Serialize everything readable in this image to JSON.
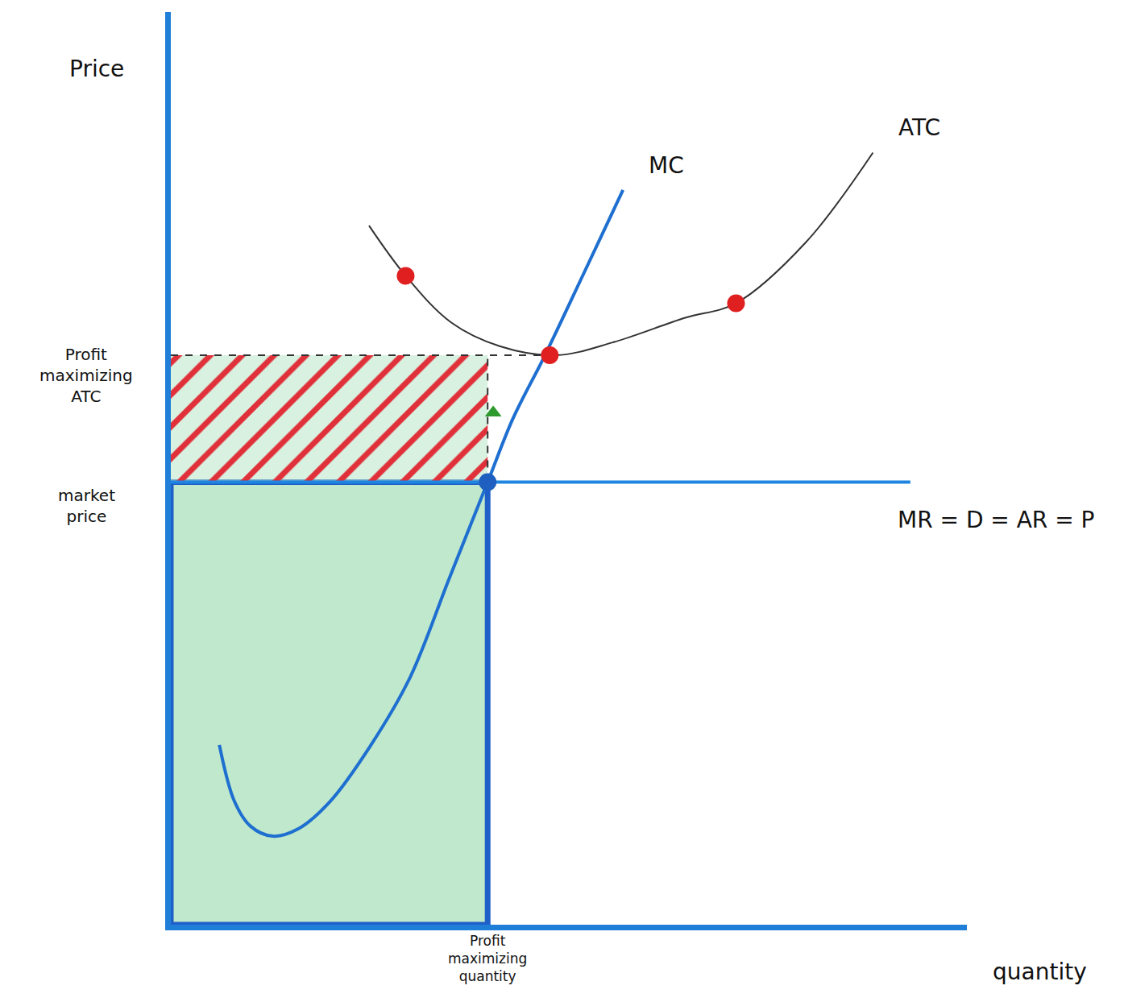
{
  "chart_data": {
    "type": "line",
    "x_label": "quantity",
    "y_label": "Price",
    "xlim": [
      0,
      100
    ],
    "ylim": [
      0,
      100
    ],
    "tick_labels": false,
    "grid": false,
    "series": [
      {
        "name": "MC",
        "type": "line",
        "color": "#1e6fd0",
        "x": [
          6.1,
          8,
          10,
          12.8,
          16,
          20,
          25,
          30,
          35,
          39.8,
          43,
          47,
          52,
          56.8
        ],
        "values": [
          19.7,
          13.5,
          10.8,
          9.7,
          10.5,
          13.5,
          19.5,
          27,
          38,
          48.5,
          55.5,
          62.4,
          71.6,
          80.5
        ]
      },
      {
        "name": "ATC",
        "type": "line",
        "color": "#333333",
        "x": [
          24.9,
          29.5,
          35.2,
          41.3,
          48.4,
          55.5,
          64.6,
          71,
          79.8,
          88.2
        ],
        "values": [
          76.6,
          71.1,
          66,
          63.4,
          62.4,
          63.8,
          66.5,
          68.1,
          74.8,
          84.6
        ]
      },
      {
        "name": "MR = D = AR = P",
        "type": "line",
        "color": "#1f86e0",
        "x": [
          0,
          92.9
        ],
        "values": [
          48.5,
          48.5
        ]
      },
      {
        "type": "line",
        "color": "#333333",
        "line_style": "dash",
        "x": [
          0,
          47
        ],
        "values": [
          62.4,
          62.4
        ]
      },
      {
        "type": "line",
        "color": "#333333",
        "line_style": "dash",
        "x": [
          39.8,
          39.8
        ],
        "values": [
          48.5,
          62.4
        ]
      },
      {
        "type": "scatter",
        "color": "#e02020",
        "marker": "circle",
        "x": [
          29.5,
          47.6,
          71
        ],
        "values": [
          71.1,
          62.4,
          68.1
        ]
      },
      {
        "type": "scatter",
        "color": "#1e5fc0",
        "marker": "circle",
        "x": [
          39.8
        ],
        "values": [
          48.5
        ]
      },
      {
        "type": "scatter",
        "color": "#2e9a2e",
        "marker": "triangle-up",
        "x": [
          40.5
        ],
        "values": [
          56.1
        ]
      }
    ],
    "regions": [
      {
        "x": [
          0,
          39.8
        ],
        "y": [
          0,
          48.5
        ],
        "color": "#bfe8cc",
        "marker": "solid"
      },
      {
        "x": [
          0,
          39.8
        ],
        "y": [
          48.5,
          62.4
        ],
        "color": "#e0303a",
        "marker": "hatch"
      }
    ],
    "annotations": [
      {
        "text": "Profit maximizing ATC",
        "y": 62.4
      },
      {
        "text": "market price",
        "y": 48.5
      },
      {
        "text": "Profit maximizing quantity",
        "x": 39.8
      }
    ]
  }
}
